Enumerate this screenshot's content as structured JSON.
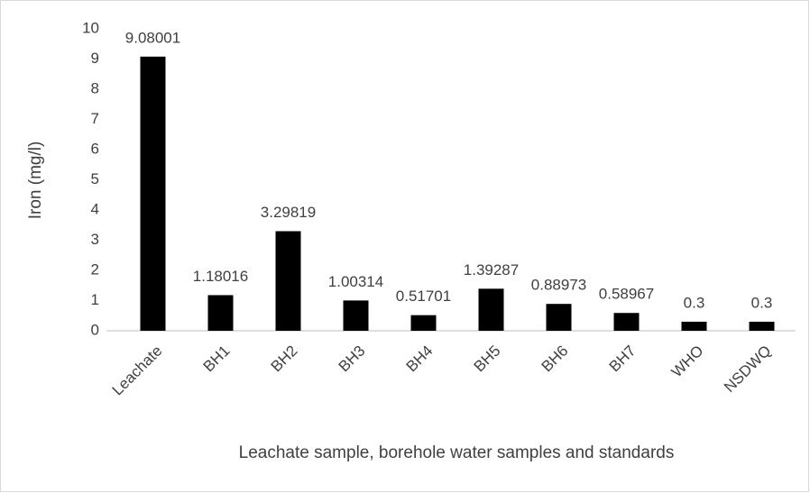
{
  "chart_data": {
    "type": "bar",
    "categories": [
      "Leachate",
      "BH1",
      "BH2",
      "BH3",
      "BH4",
      "BH5",
      "BH6",
      "BH7",
      "WHO",
      "NSDWQ"
    ],
    "values": [
      9.08001,
      1.18016,
      3.29819,
      1.00314,
      0.51701,
      1.39287,
      0.88973,
      0.58967,
      0.3,
      0.3
    ],
    "color": "#000000",
    "ylim": [
      0,
      10
    ],
    "yticks": [
      0,
      1,
      2,
      3,
      4,
      5,
      6,
      7,
      8,
      9,
      10
    ],
    "grid": false,
    "xlabel": "Leachate sample, borehole water samples and standards",
    "ylabel": "Iron (mg/l)"
  }
}
